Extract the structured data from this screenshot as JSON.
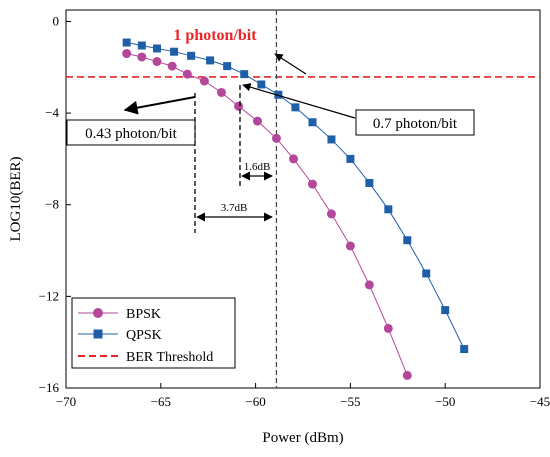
{
  "chart_data": {
    "type": "line",
    "title": "",
    "xlabel": "Power (dBm)",
    "ylabel": "LOG10(BER)",
    "xlim": [
      -70,
      -45
    ],
    "ylim": [
      -16,
      0.5
    ],
    "xticks": [
      -70,
      -65,
      -60,
      -55,
      -50,
      -45
    ],
    "yticks": [
      0,
      -4,
      -8,
      -12,
      -16
    ],
    "grid": false,
    "legend_position": "bottom-left",
    "series": [
      {
        "name": "BPSK",
        "color": "#b5479b",
        "marker": "circle",
        "x": [
          -66.8,
          -66,
          -65.2,
          -64.4,
          -63.6,
          -62.7,
          -61.8,
          -60.9,
          -59.9,
          -58.9,
          -58,
          -57,
          -56,
          -55,
          -54,
          -53,
          -52
        ],
        "y": [
          -1.4,
          -1.55,
          -1.75,
          -1.95,
          -2.3,
          -2.6,
          -3.1,
          -3.7,
          -4.35,
          -5.1,
          -6,
          -7.1,
          -8.4,
          -9.8,
          -11.5,
          -13.4,
          -15.45
        ]
      },
      {
        "name": "QPSK",
        "color": "#1f5fa8",
        "marker": "square",
        "x": [
          -66.8,
          -66,
          -65.2,
          -64.3,
          -63.4,
          -62.4,
          -61.5,
          -60.6,
          -59.7,
          -58.8,
          -57.9,
          -57,
          -56,
          -55,
          -54,
          -53,
          -52,
          -51,
          -50,
          -49
        ],
        "y": [
          -0.92,
          -1.05,
          -1.18,
          -1.32,
          -1.5,
          -1.7,
          -1.95,
          -2.3,
          -2.75,
          -3.2,
          -3.75,
          -4.4,
          -5.15,
          -6,
          -7.05,
          -8.2,
          -9.55,
          -11,
          -12.6,
          -14.3
        ]
      }
    ],
    "threshold": {
      "name": "BER Threshold",
      "y": -2.42,
      "color": "#e8262a",
      "style": "dashed"
    },
    "vertical_marker": {
      "x": -58.9,
      "style": "dashed"
    },
    "annotations": {
      "one_photon": "1 photon/bit",
      "photon_043": "0.43 photon/bit",
      "photon_07": "0.7 photon/bit",
      "gap_16": "1.6dB",
      "gap_37": "3.7dB"
    }
  }
}
